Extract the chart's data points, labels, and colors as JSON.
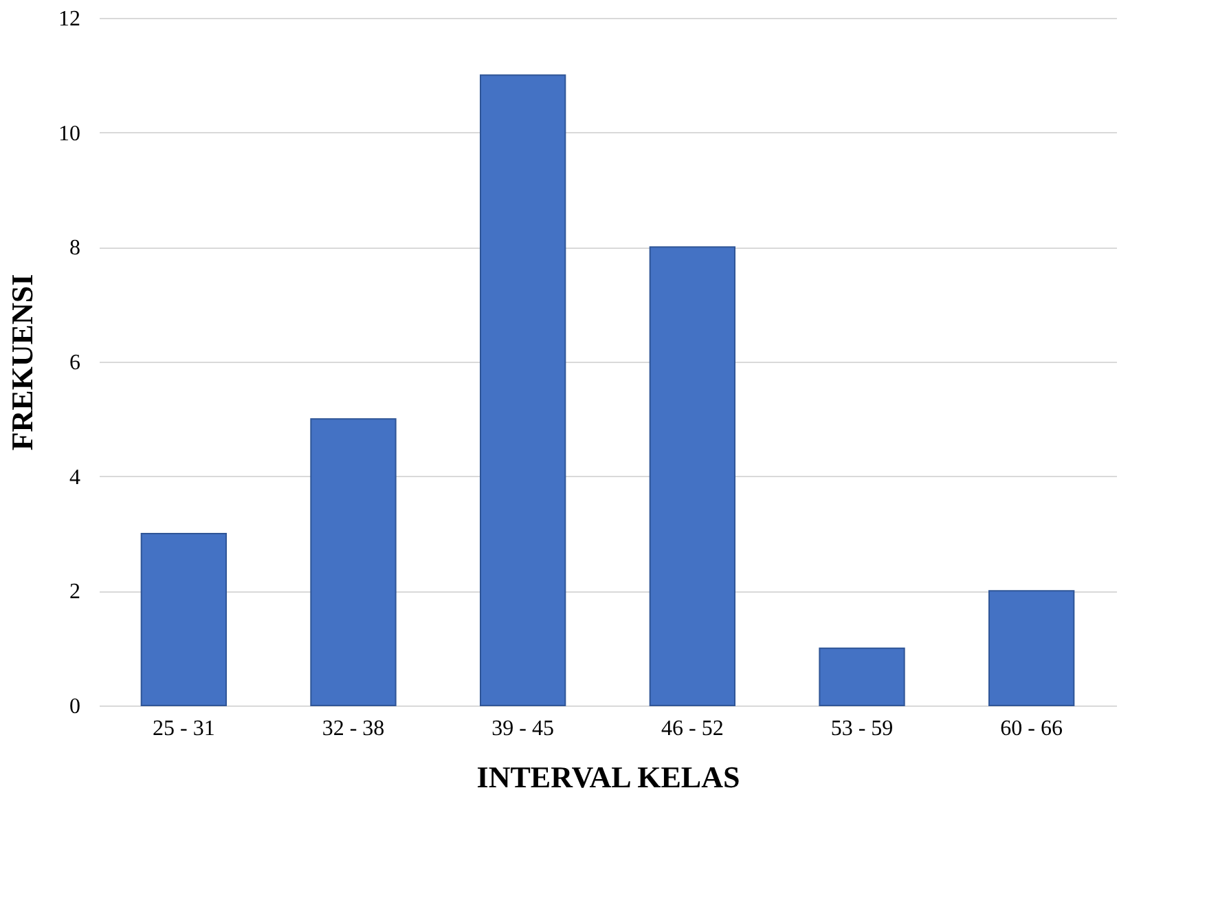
{
  "chart_data": {
    "type": "bar",
    "categories": [
      "25 - 31",
      "32 - 38",
      "39 - 45",
      "46 - 52",
      "53 - 59",
      "60 - 66"
    ],
    "values": [
      3,
      5,
      11,
      8,
      1,
      2
    ],
    "color": "#4472c4",
    "xlabel": "INTERVAL KELAS",
    "ylabel": "FREKUENSI",
    "ylim": [
      0,
      12
    ],
    "yticks": [
      0,
      2,
      4,
      6,
      8,
      10,
      12
    ],
    "grid": "y"
  }
}
